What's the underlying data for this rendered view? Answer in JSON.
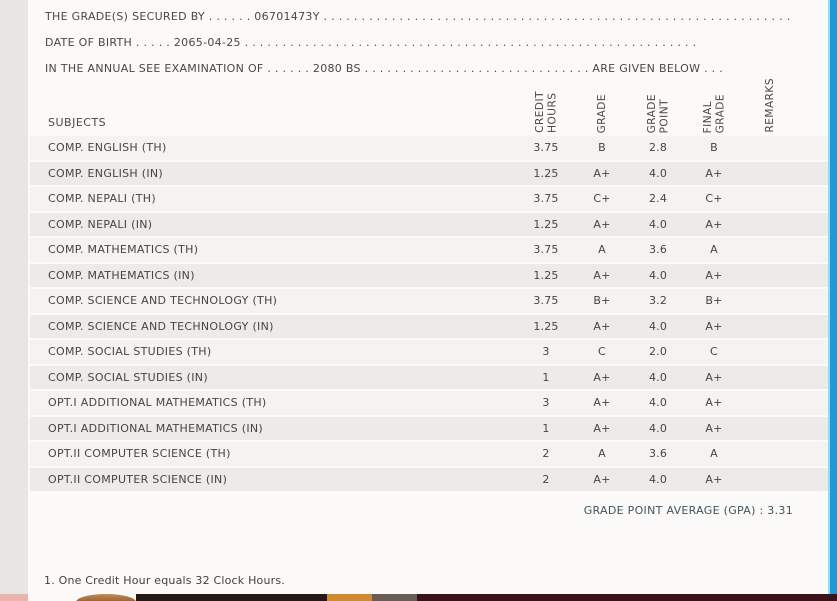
{
  "header": {
    "grades_secured_line": "THE GRADE(S) SECURED BY . . . . . . 06701473Y . . . . . . . . . . . . . . . . . . . . . . . . . . . . . . . . . . . . . . . . . . . . . . . . . . . . . . . . . . . . . . . . . . . . . . . . . . .",
    "date_of_birth_line": "DATE OF BIRTH . . . . . 2065-04-25 . . . . . . . . . . . . . . . . . . . . . . . . . . . . . . . . . . . . . . . . . . . . . . . . . . . . . . . . . . . . . . . . . . . . . .",
    "examination_line": "IN THE ANNUAL SEE EXAMINATION OF . . . . . . 2080 BS . . . . . . . . . . . . . . . . . . . . . . . . . . . . . . ARE GIVEN BELOW . . ."
  },
  "table": {
    "subjects_header": "SUBJECTS",
    "columns": [
      "CREDIT\nHOURS",
      "GRADE",
      "GRADE\nPOINT",
      "FINAL\nGRADE",
      "REMARKS"
    ],
    "rows": [
      {
        "subject": "COMP. ENGLISH (TH)",
        "credit_hours": "3.75",
        "grade": "B",
        "grade_point": "2.8",
        "final_grade": "B",
        "remarks": ""
      },
      {
        "subject": "COMP. ENGLISH (IN)",
        "credit_hours": "1.25",
        "grade": "A+",
        "grade_point": "4.0",
        "final_grade": "A+",
        "remarks": ""
      },
      {
        "subject": "COMP. NEPALI (TH)",
        "credit_hours": "3.75",
        "grade": "C+",
        "grade_point": "2.4",
        "final_grade": "C+",
        "remarks": ""
      },
      {
        "subject": "COMP. NEPALI (IN)",
        "credit_hours": "1.25",
        "grade": "A+",
        "grade_point": "4.0",
        "final_grade": "A+",
        "remarks": ""
      },
      {
        "subject": "COMP. MATHEMATICS (TH)",
        "credit_hours": "3.75",
        "grade": "A",
        "grade_point": "3.6",
        "final_grade": "A",
        "remarks": ""
      },
      {
        "subject": "COMP. MATHEMATICS (IN)",
        "credit_hours": "1.25",
        "grade": "A+",
        "grade_point": "4.0",
        "final_grade": "A+",
        "remarks": ""
      },
      {
        "subject": "COMP. SCIENCE AND TECHNOLOGY (TH)",
        "credit_hours": "3.75",
        "grade": "B+",
        "grade_point": "3.2",
        "final_grade": "B+",
        "remarks": ""
      },
      {
        "subject": "COMP. SCIENCE AND TECHNOLOGY (IN)",
        "credit_hours": "1.25",
        "grade": "A+",
        "grade_point": "4.0",
        "final_grade": "A+",
        "remarks": ""
      },
      {
        "subject": "COMP. SOCIAL STUDIES (TH)",
        "credit_hours": "3",
        "grade": "C",
        "grade_point": "2.0",
        "final_grade": "C",
        "remarks": ""
      },
      {
        "subject": "COMP. SOCIAL STUDIES (IN)",
        "credit_hours": "1",
        "grade": "A+",
        "grade_point": "4.0",
        "final_grade": "A+",
        "remarks": ""
      },
      {
        "subject": "OPT.I ADDITIONAL MATHEMATICS (TH)",
        "credit_hours": "3",
        "grade": "A+",
        "grade_point": "4.0",
        "final_grade": "A+",
        "remarks": ""
      },
      {
        "subject": "OPT.I ADDITIONAL MATHEMATICS (IN)",
        "credit_hours": "1",
        "grade": "A+",
        "grade_point": "4.0",
        "final_grade": "A+",
        "remarks": ""
      },
      {
        "subject": "OPT.II COMPUTER SCIENCE (TH)",
        "credit_hours": "2",
        "grade": "A",
        "grade_point": "3.6",
        "final_grade": "A",
        "remarks": ""
      },
      {
        "subject": "OPT.II COMPUTER SCIENCE (IN)",
        "credit_hours": "2",
        "grade": "A+",
        "grade_point": "4.0",
        "final_grade": "A+",
        "remarks": ""
      }
    ]
  },
  "summary": {
    "gpa_line": "GRADE POINT AVERAGE (GPA) : 3.31"
  },
  "footnote": "1. One Credit Hour equals 32 Clock Hours.",
  "colors": {
    "page_background": "#fbfaf8",
    "left_strip": "#e8e6e2",
    "row_stripe_light": "#f5f3ef",
    "row_stripe_dark": "#edebe7",
    "text": "#474542",
    "gpa_text": "#3f565c",
    "right_bar_blue": "#1f9ad3",
    "bottom_band_dark": "#261813",
    "bottom_band_orange": "#d2892f",
    "bottom_band_maroon": "#39141b",
    "bottom_band_pink": "#e9b5aa"
  }
}
